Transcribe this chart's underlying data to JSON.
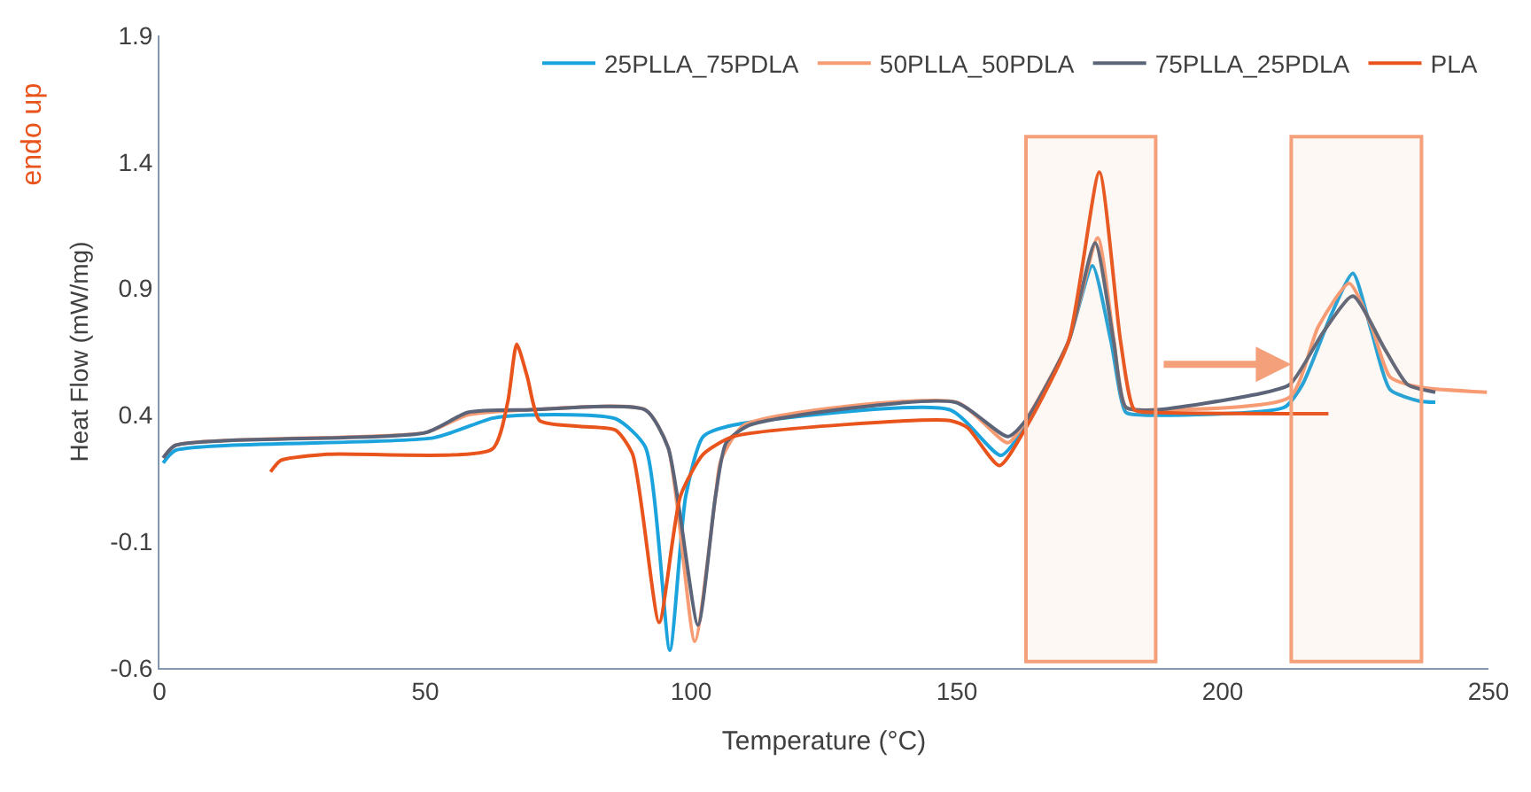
{
  "chart_data": {
    "type": "line",
    "xlabel": "Temperature (°C)",
    "ylabel": "Heat Flow (mW/mg)",
    "annotations": [
      "endo up"
    ],
    "xlim": [
      0,
      250
    ],
    "xticks": [
      0,
      50,
      100,
      150,
      200,
      250
    ],
    "ylim": [
      -0.6,
      1.9
    ],
    "yticks": [
      -0.6,
      -0.1,
      0.4,
      0.9,
      1.4,
      1.9
    ],
    "legend": "top right",
    "marker": "none",
    "line_style": "solid",
    "bands": [
      {
        "axis": "x",
        "from": 163,
        "to": 187.4,
        "color": "#f4a07a"
      },
      {
        "axis": "x",
        "from": 212.9,
        "to": 237.4,
        "color": "#f4a07a"
      }
    ],
    "series": [
      {
        "name": "25PLLA_75PDLA",
        "color": "#1aa3dc",
        "x": [
          0.7,
          3,
          51.6,
          62.6,
          69.2,
          85.8,
          91.4,
          96,
          99,
          102.3,
          108,
          148.7,
          158.3,
          163,
          171,
          175.5,
          179,
          181.8,
          185,
          211.6,
          215,
          220.5,
          224.5,
          228,
          231.5,
          237,
          240
        ],
        "values": [
          0.21,
          0.26,
          0.31,
          0.387,
          0.4,
          0.385,
          0.273,
          -0.53,
          0.08,
          0.315,
          0.36,
          0.42,
          0.24,
          0.36,
          0.69,
          0.99,
          0.69,
          0.41,
          0.4,
          0.43,
          0.52,
          0.8,
          0.96,
          0.73,
          0.5,
          0.455,
          0.45
        ]
      },
      {
        "name": "50PLLA_50PDLA",
        "color": "#f79b73",
        "x": [
          0.7,
          3,
          50,
          58,
          69.2,
          91.4,
          95.7,
          100.7,
          104.6,
          105.6,
          110,
          150,
          159.6,
          163,
          171,
          176.5,
          179.5,
          181.8,
          187.4,
          212.6,
          218,
          223.8,
          228,
          231.5,
          237,
          249.7
        ],
        "values": [
          0.23,
          0.28,
          0.33,
          0.4,
          0.42,
          0.42,
          0.27,
          -0.495,
          0.08,
          0.22,
          0.36,
          0.45,
          0.29,
          0.38,
          0.69,
          1.1,
          0.7,
          0.43,
          0.42,
          0.47,
          0.75,
          0.92,
          0.75,
          0.55,
          0.51,
          0.49
        ]
      },
      {
        "name": "75PLLA_25PDLA",
        "color": "#5b6478",
        "x": [
          0.7,
          3,
          50,
          58,
          69.2,
          91.4,
          95.7,
          101.3,
          104.6,
          106.6,
          111,
          149.7,
          159.6,
          163,
          171,
          176,
          179.5,
          181.8,
          187.4,
          206,
          212.6,
          219,
          224.5,
          230.5,
          234.8,
          240
        ],
        "values": [
          0.23,
          0.28,
          0.33,
          0.41,
          0.42,
          0.42,
          0.27,
          -0.43,
          0.08,
          0.29,
          0.36,
          0.45,
          0.315,
          0.38,
          0.69,
          1.08,
          0.69,
          0.43,
          0.42,
          0.48,
          0.52,
          0.73,
          0.87,
          0.66,
          0.52,
          0.49
        ]
      },
      {
        "name": "PLA",
        "color": "#e8541c",
        "x": [
          20.9,
          22.8,
          31.8,
          62.6,
          65.5,
          67.2,
          69.2,
          71.5,
          79,
          85.8,
          89,
          94,
          98,
          102.3,
          108,
          148.7,
          152,
          158,
          163,
          171,
          176.8,
          180.8,
          183.4,
          187.4,
          219.9
        ],
        "values": [
          0.175,
          0.22,
          0.245,
          0.265,
          0.45,
          0.68,
          0.55,
          0.378,
          0.355,
          0.34,
          0.245,
          -0.42,
          0.08,
          0.245,
          0.315,
          0.378,
          0.35,
          0.2,
          0.35,
          0.69,
          1.36,
          0.69,
          0.42,
          0.41,
          0.405
        ]
      }
    ]
  }
}
